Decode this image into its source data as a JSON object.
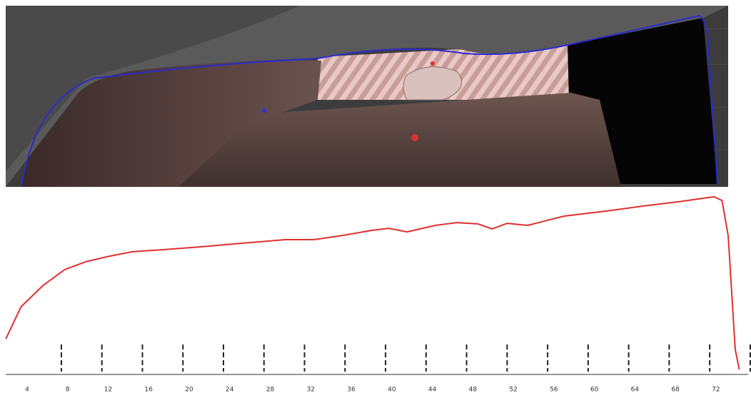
{
  "chart_data": {
    "type": "line",
    "x": [
      1.9,
      3.4,
      5.6,
      7.7,
      9.8,
      11.9,
      14.4,
      17.5,
      21.1,
      25.3,
      29.5,
      32.3,
      35.2,
      38.0,
      39.7,
      41.5,
      44.3,
      46.4,
      48.5,
      49.9,
      51.4,
      53.4,
      57.0,
      61.2,
      64.8,
      68.3,
      71.8,
      72.6,
      73.2,
      73.6,
      73.9,
      74.3
    ],
    "series": [
      {
        "color": "#e03030",
        "values": [
          19.2,
          36.5,
          48.1,
          56.5,
          60.8,
          63.5,
          66.2,
          67.3,
          68.8,
          70.8,
          72.7,
          72.7,
          75.0,
          77.7,
          78.8,
          76.9,
          80.4,
          81.9,
          81.2,
          78.5,
          81.5,
          80.4,
          85.4,
          88.1,
          90.8,
          93.1,
          95.8,
          93.8,
          75.0,
          40.4,
          13.5,
          2.7
        ]
      }
    ],
    "xlim": [
      1.5,
      75
    ],
    "xticks": [
      4,
      8,
      12,
      16,
      20,
      24,
      28,
      32,
      36,
      40,
      44,
      48,
      52,
      56,
      60,
      64,
      68,
      72
    ],
    "ylim": [
      0,
      100
    ]
  }
}
